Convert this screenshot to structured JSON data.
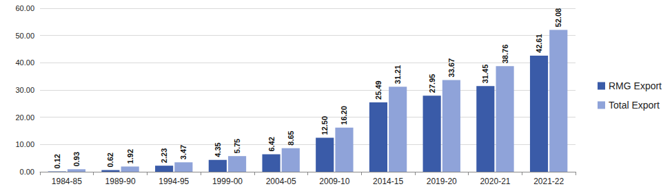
{
  "chart_data": {
    "type": "bar",
    "categories": [
      "1984-85",
      "1989-90",
      "1994-95",
      "1999-00",
      "2004-05",
      "2009-10",
      "2014-15",
      "2019-20",
      "2020-21",
      "2021-22"
    ],
    "series": [
      {
        "name": "RMG Export",
        "color": "#3a5ba8",
        "values": [
          0.12,
          0.62,
          2.23,
          4.35,
          6.42,
          12.5,
          25.49,
          27.95,
          31.45,
          42.61
        ],
        "value_labels": [
          "0.12",
          "0.62",
          "2.23",
          "4.35",
          "6.42",
          "12.50",
          "25.49",
          "27.95",
          "31.45",
          "42.61"
        ]
      },
      {
        "name": "Total Export",
        "color": "#8fa3d9",
        "values": [
          0.93,
          1.92,
          3.47,
          5.75,
          8.65,
          16.2,
          31.21,
          33.67,
          38.76,
          52.08
        ],
        "value_labels": [
          "0.93",
          "1.92",
          "3.47",
          "5.75",
          "8.65",
          "16.20",
          "31.21",
          "33.67",
          "38.76",
          "52.08"
        ]
      }
    ],
    "ylim": [
      0,
      60
    ],
    "yticks": [
      {
        "value": 0,
        "label": "0.00"
      },
      {
        "value": 10,
        "label": "10.00"
      },
      {
        "value": 20,
        "label": "20.00"
      },
      {
        "value": 30,
        "label": "30.00"
      },
      {
        "value": 40,
        "label": "40.00"
      },
      {
        "value": 50,
        "label": "50.00"
      },
      {
        "value": 60,
        "label": "60.00"
      }
    ],
    "grid": true,
    "legend": "right",
    "data_labels": true
  }
}
